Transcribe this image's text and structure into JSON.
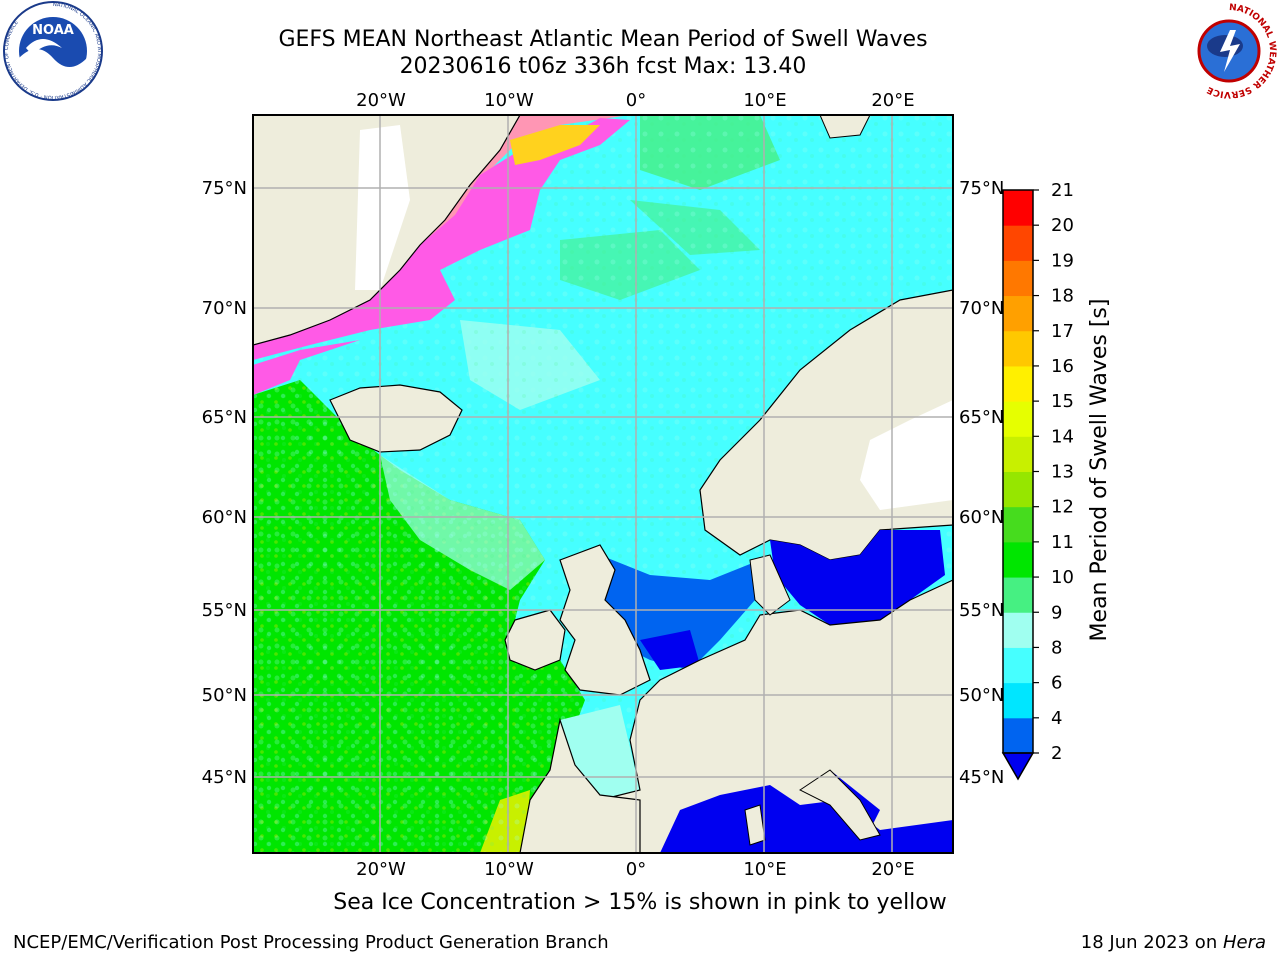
{
  "header": {
    "title_line1": "GEFS MEAN Northeast Atlantic Mean Period of Swell Waves",
    "title_line2": "20230616 t06z 336h fcst   Max: 13.40"
  },
  "logos": {
    "left": "NOAA",
    "left_ring_text": "NATIONAL OCEANIC AND ATMOSPHERIC ADMINISTRATION · U.S. DEPARTMENT OF COMMERCE",
    "right_ring_text": "NATIONAL WEATHER SERVICE"
  },
  "map": {
    "lon_labels": [
      "20°W",
      "10°W",
      "0°",
      "10°E",
      "20°E"
    ],
    "lat_labels": [
      "75°N",
      "70°N",
      "65°N",
      "60°N",
      "55°N",
      "50°N",
      "45°N"
    ],
    "colorbar_label": "Mean Period of Swell Waves [s]",
    "colorbar_ticks": [
      "2",
      "4",
      "6",
      "8",
      "9",
      "10",
      "11",
      "12",
      "13",
      "14",
      "15",
      "16",
      "17",
      "18",
      "19",
      "20",
      "21"
    ],
    "colorbar_colors": [
      "#0064f0",
      "#00e6ff",
      "#46ffff",
      "#a0fff0",
      "#46f082",
      "#00e600",
      "#46dc1e",
      "#96e600",
      "#c8f000",
      "#e6ff00",
      "#fff000",
      "#ffc800",
      "#ffa000",
      "#ff7800",
      "#ff4600",
      "#ff0000"
    ],
    "below_min_color": "#0000f0",
    "land_color": "#eeeddc",
    "ice_colors": [
      "#ff5ae6",
      "#ff96b4",
      "#ffd21e"
    ]
  },
  "caption": "Sea Ice Concentration > 15% is shown in pink to yellow",
  "footer": {
    "left": "NCEP/EMC/Verification Post Processing Product Generation Branch",
    "right_date": "18 Jun 2023 on ",
    "right_host": "Hera"
  }
}
